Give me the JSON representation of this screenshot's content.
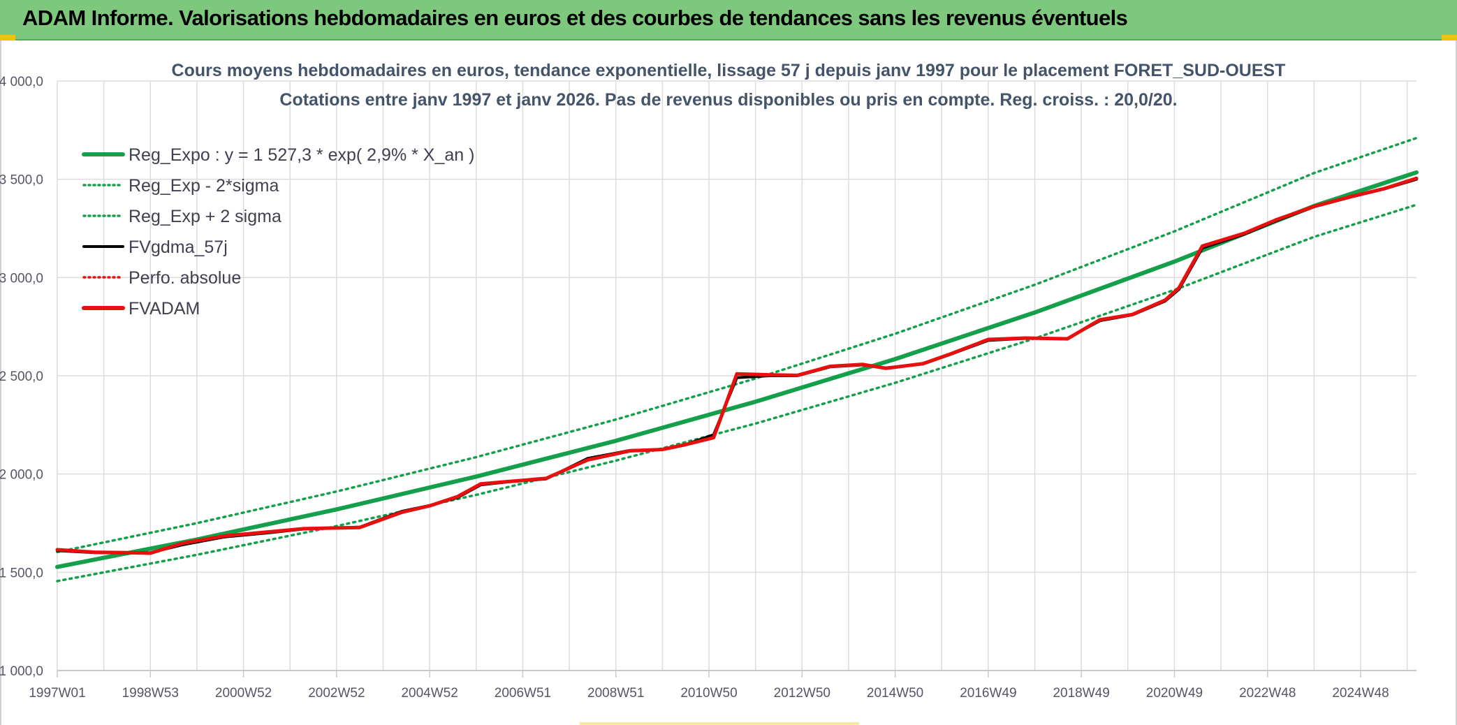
{
  "banner": {
    "title": "ADAM Informe. Valorisations hebdomadaires en euros et des courbes de tendances sans les revenus éventuels"
  },
  "colors": {
    "banner": "#7ec87e",
    "regression": "#14a04a",
    "fv_black": "#000000",
    "fv_red": "#e8100e",
    "grid": "#dcdcdc",
    "axis_text": "#555566",
    "title_text": "#44546a"
  },
  "chart_data": {
    "type": "line",
    "title_line1": "Cours moyens hebdomadaires en euros, tendance exponentielle, lissage 57 j depuis janv 1997 pour le placement FORET_SUD-OUEST",
    "title_line2": "Cotations entre janv 1997 et janv 2026. Pas de revenus disponibles ou pris en compte. Reg. croiss. : 20,0/20.",
    "ylim": [
      1000,
      4000
    ],
    "yticks": [
      "1 000,0",
      "1 500,0",
      "2 000,0",
      "2 500,0",
      "3 000,0",
      "3 500,0",
      "4 000,0"
    ],
    "ytick_values": [
      1000,
      1500,
      2000,
      2500,
      3000,
      3500,
      4000
    ],
    "xlim": [
      1997.0,
      2026.2
    ],
    "xticks": [
      "1997W01",
      "1998W53",
      "2000W52",
      "2002W52",
      "2004W52",
      "2006W51",
      "2008W51",
      "2010W50",
      "2012W50",
      "2014W50",
      "2016W49",
      "2018W49",
      "2020W49",
      "2022W48",
      "2024W48"
    ],
    "xtick_years": [
      1997.0,
      1999.0,
      2001.0,
      2003.0,
      2005.0,
      2007.0,
      2009.0,
      2011.0,
      2013.0,
      2015.0,
      2017.0,
      2019.0,
      2021.0,
      2023.0,
      2025.0
    ],
    "grid": true,
    "legend_position": "top-left",
    "legend": [
      {
        "label": "Reg_Expo : y = 1 527,3 * exp( 2,9% *  X_an )",
        "style": "solid-thick",
        "color": "#14a04a"
      },
      {
        "label": "Reg_Exp - 2*sigma",
        "style": "dotted",
        "color": "#14a04a"
      },
      {
        "label": "Reg_Exp + 2 sigma",
        "style": "dotted",
        "color": "#14a04a"
      },
      {
        "label": "FVgdma_57j",
        "style": "solid",
        "color": "#000000"
      },
      {
        "label": "Perfo. absolue",
        "style": "dotted",
        "color": "#e8100e"
      },
      {
        "label": "FVADAM",
        "style": "solid-thick",
        "color": "#e8100e"
      }
    ],
    "series": [
      {
        "name": "Reg_Expo : y = 1 527,3 * exp( 2,9% *  X_an )",
        "x": [
          1997.0,
          2000.0,
          2003.0,
          2006.0,
          2009.0,
          2012.0,
          2015.0,
          2018.0,
          2021.0,
          2024.0,
          2026.2
        ],
        "y": [
          1527,
          1667,
          1820,
          1987,
          2169,
          2368,
          2585,
          2822,
          3081,
          3364,
          3535
        ]
      },
      {
        "name": "Reg_Exp - 2*sigma",
        "x": [
          1997.0,
          2000.0,
          2003.0,
          2006.0,
          2009.0,
          2012.0,
          2015.0,
          2018.0,
          2021.0,
          2024.0,
          2026.2
        ],
        "y": [
          1455,
          1589,
          1735,
          1894,
          2068,
          2257,
          2464,
          2690,
          2937,
          3207,
          3370
        ]
      },
      {
        "name": "Reg_Exp + 2 sigma",
        "x": [
          1997.0,
          2000.0,
          2003.0,
          2006.0,
          2009.0,
          2012.0,
          2015.0,
          2018.0,
          2021.0,
          2024.0,
          2026.2
        ],
        "y": [
          1603,
          1750,
          1911,
          2086,
          2277,
          2486,
          2714,
          2963,
          3235,
          3532,
          3710
        ]
      },
      {
        "name": "FVgdma_57j",
        "x": [
          1997.0,
          1997.8,
          1998.5,
          1999.0,
          1999.7,
          2000.6,
          2001.5,
          2002.3,
          2002.9,
          2003.5,
          2004.4,
          2005.0,
          2005.6,
          2006.1,
          2006.7,
          2007.5,
          2008.4,
          2009.3,
          2010.0,
          2010.5,
          2011.1,
          2011.6,
          2012.3,
          2012.9,
          2013.6,
          2014.3,
          2014.8,
          2015.6,
          2016.2,
          2017.0,
          2017.8,
          2018.7,
          2019.4,
          2020.1,
          2020.8,
          2021.1,
          2021.6,
          2022.5,
          2023.2,
          2024.0,
          2024.8,
          2025.5,
          2026.2
        ],
        "y": [
          1610,
          1600,
          1598,
          1600,
          1640,
          1680,
          1700,
          1720,
          1725,
          1730,
          1810,
          1840,
          1880,
          1945,
          1960,
          1975,
          2080,
          2120,
          2125,
          2150,
          2200,
          2490,
          2500,
          2500,
          2545,
          2555,
          2540,
          2560,
          2610,
          2680,
          2690,
          2690,
          2780,
          2810,
          2880,
          2940,
          3150,
          3220,
          3290,
          3360,
          3410,
          3450,
          3500
        ]
      },
      {
        "name": "FVADAM",
        "x": [
          1997.0,
          1997.8,
          1998.5,
          1999.0,
          1999.7,
          2000.6,
          2001.5,
          2002.3,
          2002.9,
          2003.5,
          2004.4,
          2005.0,
          2005.6,
          2006.1,
          2006.7,
          2007.5,
          2008.4,
          2009.3,
          2010.0,
          2010.5,
          2011.1,
          2011.6,
          2012.3,
          2012.9,
          2013.6,
          2014.3,
          2014.8,
          2015.6,
          2016.2,
          2017.0,
          2017.8,
          2018.7,
          2019.4,
          2020.1,
          2020.8,
          2021.1,
          2021.6,
          2022.5,
          2023.2,
          2024.0,
          2024.8,
          2025.5,
          2026.2
        ],
        "y": [
          1615,
          1602,
          1600,
          1597,
          1648,
          1685,
          1705,
          1722,
          1725,
          1728,
          1805,
          1838,
          1885,
          1950,
          1962,
          1978,
          2072,
          2118,
          2125,
          2150,
          2185,
          2510,
          2505,
          2502,
          2548,
          2558,
          2538,
          2562,
          2612,
          2685,
          2692,
          2688,
          2785,
          2812,
          2885,
          2948,
          3160,
          3225,
          3295,
          3362,
          3412,
          3452,
          3505
        ]
      }
    ]
  }
}
